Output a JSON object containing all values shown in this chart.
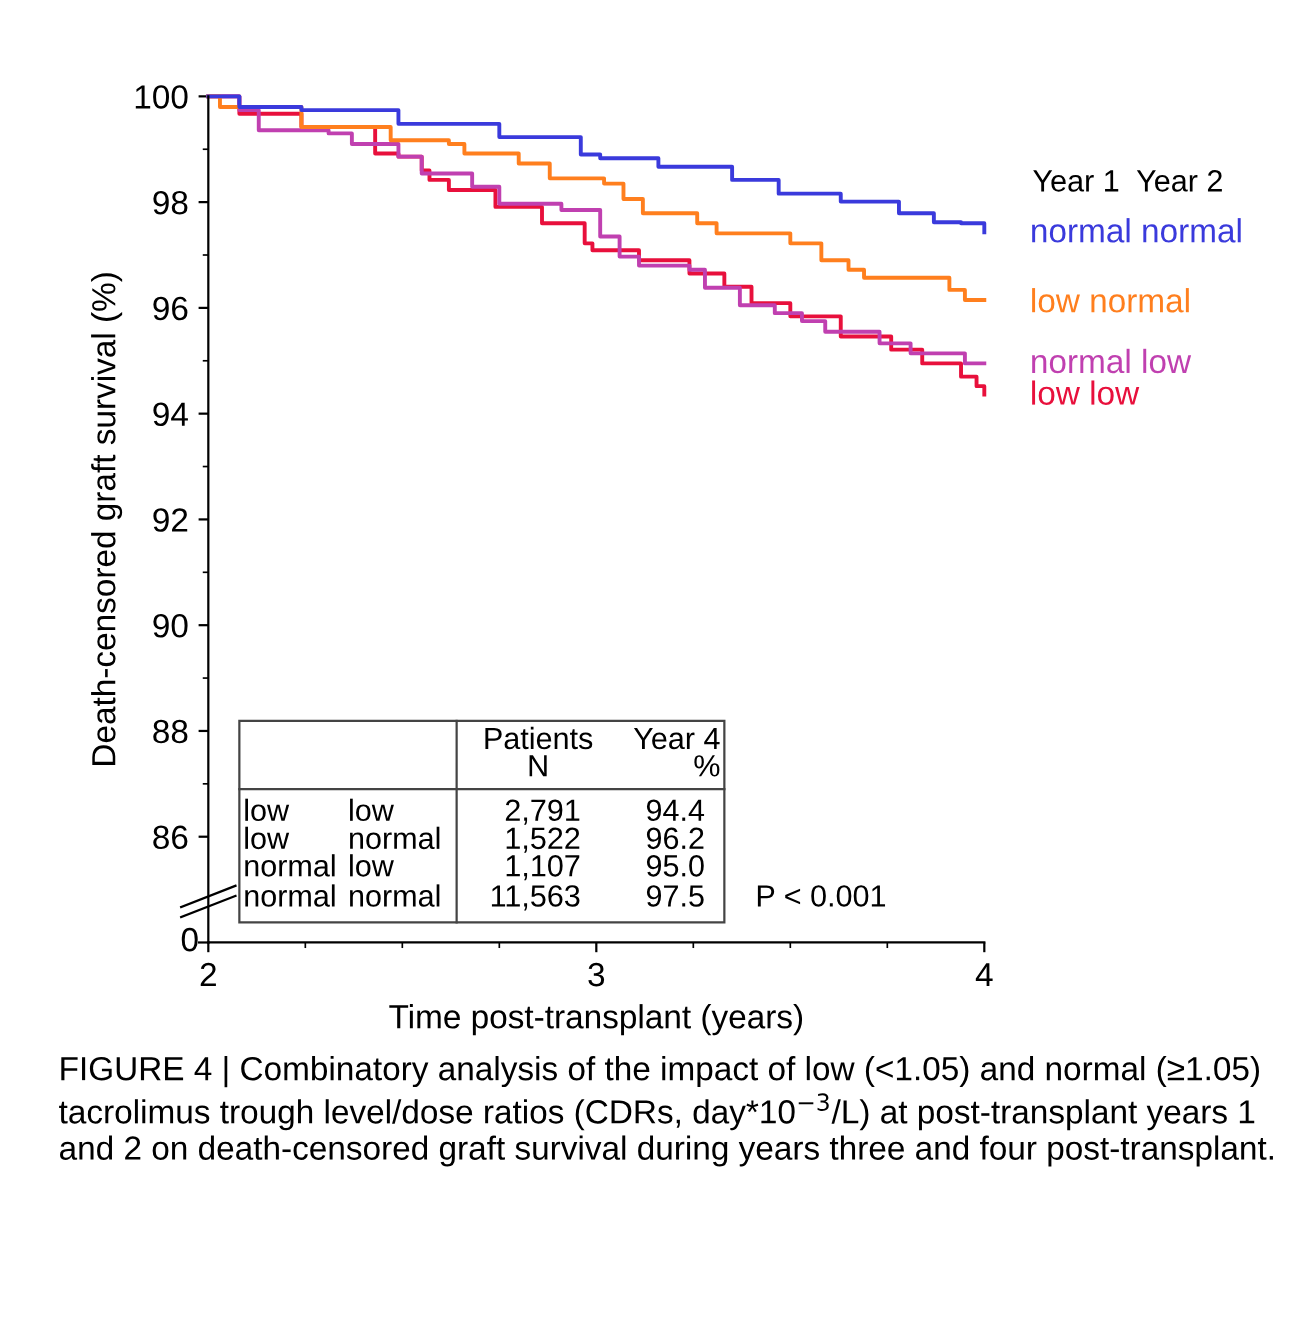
{
  "chart_data": {
    "type": "step",
    "xlabel": "Time post-transplant (years)",
    "ylabel": "Death-censored graft survival (%)",
    "xlim": [
      2,
      4
    ],
    "xticks": [
      2,
      3,
      4
    ],
    "ylim": [
      84,
      100
    ],
    "yticks": [
      86,
      88,
      90,
      92,
      94,
      96,
      98,
      100
    ],
    "legend": "right",
    "legend_title": "Year 1  Year 2",
    "grid": false,
    "marker": "none",
    "line_style": "solid",
    "series": [
      {
        "name": "normal normal",
        "color": "#3a3adc",
        "x": [
          2,
          2.08,
          2.24,
          2.49,
          2.75,
          2.96,
          3.01,
          3.16,
          3.35,
          3.47,
          3.63,
          3.78,
          3.87,
          3.94,
          4.0
        ],
        "values": [
          100,
          99.8,
          99.74,
          99.48,
          99.23,
          98.9,
          98.83,
          98.67,
          98.42,
          98.16,
          98.01,
          97.79,
          97.62,
          97.6,
          97.43
        ]
      },
      {
        "name": "low normal",
        "color": "#ff7f1e",
        "x": [
          2,
          2.03,
          2.24,
          2.31,
          2.44,
          2.47,
          2.62,
          2.66,
          2.8,
          2.88,
          3.02,
          3.07,
          3.12,
          3.26,
          3.31,
          3.41,
          3.5,
          3.58,
          3.65,
          3.69,
          3.85,
          3.91,
          3.95,
          4.0
        ],
        "values": [
          100,
          99.8,
          99.42,
          99.42,
          99.42,
          99.17,
          99.1,
          98.92,
          98.73,
          98.45,
          98.35,
          98.06,
          97.79,
          97.6,
          97.41,
          97.41,
          97.22,
          96.9,
          96.72,
          96.57,
          96.57,
          96.34,
          96.15,
          96.15
        ]
      },
      {
        "name": "normal low",
        "color": "#c040b0",
        "x": [
          2,
          2.08,
          2.13,
          2.31,
          2.37,
          2.49,
          2.55,
          2.68,
          2.75,
          2.91,
          3.01,
          3.06,
          3.11,
          3.24,
          3.28,
          3.35,
          3.37,
          3.46,
          3.53,
          3.59,
          3.73,
          3.81,
          3.89,
          3.95,
          4.0
        ],
        "values": [
          100,
          99.74,
          99.36,
          99.3,
          99.1,
          98.86,
          98.54,
          98.29,
          97.97,
          97.85,
          97.35,
          96.97,
          96.8,
          96.72,
          96.38,
          96.38,
          96.05,
          95.9,
          95.75,
          95.55,
          95.33,
          95.14,
          95.14,
          94.95,
          94.95
        ]
      },
      {
        "name": "low low",
        "color": "#e8103c",
        "x": [
          2,
          2.08,
          2.24,
          2.43,
          2.49,
          2.55,
          2.57,
          2.62,
          2.74,
          2.86,
          2.97,
          2.99,
          3.11,
          3.24,
          3.33,
          3.4,
          3.5,
          3.63,
          3.76,
          3.84,
          3.94,
          3.98,
          4.0
        ],
        "values": [
          100,
          99.67,
          99.42,
          98.92,
          98.86,
          98.6,
          98.42,
          98.23,
          97.91,
          97.6,
          97.22,
          97.09,
          96.9,
          96.65,
          96.4,
          96.09,
          95.84,
          95.46,
          95.21,
          94.95,
          94.7,
          94.52,
          94.36
        ]
      }
    ],
    "annotations": [
      "P < 0.001",
      "Patients\nN",
      "Year 4\n%",
      "low",
      "low",
      "2,791",
      "94.4",
      "low",
      "normal",
      "1,522",
      "96.2",
      "normal",
      "low",
      "1,107",
      "95.0",
      "normal",
      "normal",
      "11,563",
      "97.5",
      "FIGURE 4 | Combinatory analysis of the impact of low (<1.05) and normal (≥1.05) tacrolimus trough level/dose ratios (CDRs, day*10$^{−3}$/L) at post-transplant years 1 and 2 on death-censored graft survival during years three and four post-transplant.",
      "0"
    ]
  }
}
